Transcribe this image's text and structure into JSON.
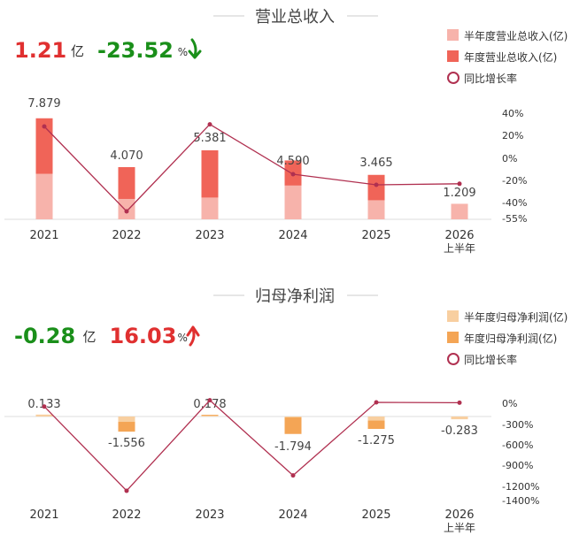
{
  "chart_data": [
    {
      "type": "bar",
      "title": "营业总收入",
      "headline": {
        "value": "1.21",
        "unit": "亿",
        "change": "-23.52",
        "change_unit": "%",
        "arrow": "down",
        "value_color": "#e03030",
        "change_color": "#1a8f1a"
      },
      "categories": [
        "2021",
        "2022",
        "2023",
        "2024",
        "2025",
        "2026"
      ],
      "category_sublabels": [
        "",
        "",
        "",
        "",
        "",
        "上半年"
      ],
      "series": [
        {
          "name": "半年度营业总收入(亿)",
          "kind": "bar",
          "color": "#f7b3ab",
          "values": [
            3.55,
            1.59,
            1.7,
            2.64,
            1.49,
            1.209
          ]
        },
        {
          "name": "年度营业总收入(亿)",
          "kind": "bar",
          "color": "#f06458",
          "values": [
            7.879,
            4.07,
            5.381,
            4.59,
            3.465,
            null
          ]
        },
        {
          "name": "同比增长率",
          "kind": "line",
          "axis": "right",
          "color": "#b03050",
          "values": [
            30,
            -50,
            32,
            -15,
            -25,
            -24
          ]
        }
      ],
      "data_labels": [
        "7.879",
        "4.070",
        "5.381",
        "4.590",
        "3.465",
        "1.209"
      ],
      "ylim": [
        0,
        8.5
      ],
      "y2_ticks": [
        "40%",
        "20%",
        "0%",
        "-20%",
        "-40%",
        "-55%"
      ],
      "y2_values": [
        40,
        20,
        0,
        -20,
        -40,
        -55
      ],
      "legend_position": "top-right"
    },
    {
      "type": "bar",
      "title": "归母净利润",
      "headline": {
        "value": "-0.28",
        "unit": "亿",
        "change": "16.03",
        "change_unit": "%",
        "arrow": "up",
        "value_color": "#1a8f1a",
        "change_color": "#e03030"
      },
      "categories": [
        "2021",
        "2022",
        "2023",
        "2024",
        "2025",
        "2026"
      ],
      "category_sublabels": [
        "",
        "",
        "",
        "",
        "",
        "上半年"
      ],
      "series": [
        {
          "name": "半年度归母净利润(亿)",
          "kind": "bar",
          "color": "#f8cfa0",
          "values": [
            0.2,
            -0.55,
            0.1,
            -0.1,
            -0.42,
            -0.283
          ]
        },
        {
          "name": "年度归母净利润(亿)",
          "kind": "bar",
          "color": "#f4a555",
          "values": [
            0.133,
            -1.556,
            0.178,
            -1.794,
            -1.275,
            null
          ]
        },
        {
          "name": "同比增长率",
          "kind": "line",
          "axis": "right",
          "color": "#b03050",
          "values": [
            -60,
            -1270,
            30,
            -1050,
            0,
            -5
          ]
        }
      ],
      "data_labels": [
        "0.133",
        "-1.556",
        "0.178",
        "-1.794",
        "-1.275",
        "-0.283"
      ],
      "ylim": [
        -7.0,
        0.5
      ],
      "y2_ticks": [
        "0%",
        "-300%",
        "-600%",
        "-900%",
        "-1200%",
        "-1400%"
      ],
      "y2_values": [
        0,
        -300,
        -600,
        -900,
        -1200,
        -1400
      ],
      "legend_position": "top-right"
    }
  ]
}
